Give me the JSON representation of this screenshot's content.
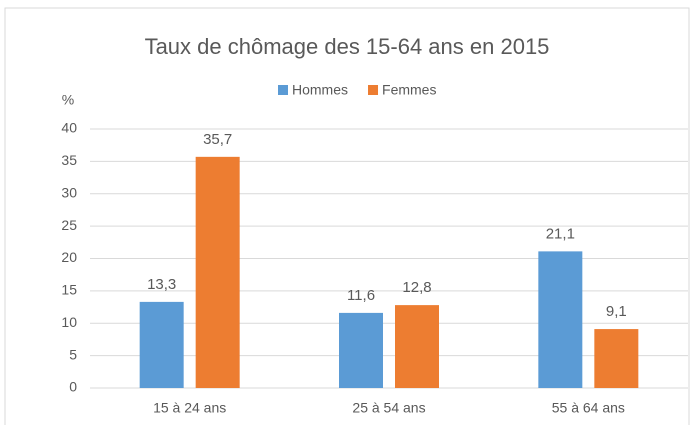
{
  "chart_data": {
    "type": "bar",
    "title": "Taux de chômage des 15-64 ans en 2015",
    "y_label": "%",
    "categories": [
      "15 à 24 ans",
      "25 à 54 ans",
      "55 à 64 ans"
    ],
    "series": [
      {
        "name": "Hommes",
        "color": "#5b9bd5",
        "values": [
          13.3,
          11.6,
          21.1
        ],
        "value_labels": [
          "13,3",
          "11,6",
          "21,1"
        ]
      },
      {
        "name": "Femmes",
        "color": "#ed7d31",
        "values": [
          35.7,
          12.8,
          9.1
        ],
        "value_labels": [
          "35,7",
          "12,8",
          "9,1"
        ]
      }
    ],
    "ylim": [
      0,
      40
    ],
    "yticks": [
      0,
      5,
      10,
      15,
      20,
      25,
      30,
      35,
      40
    ],
    "grid": true,
    "legend": "top"
  }
}
